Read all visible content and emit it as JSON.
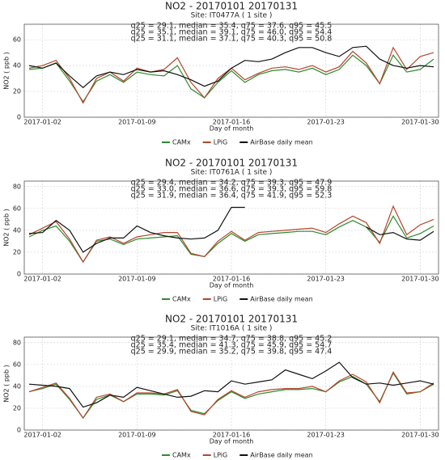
{
  "chart_data": [
    {
      "type": "line",
      "title": "NO2 - 20170101 20170131",
      "subtitle": "Site:  IT0477A ( 1 site )",
      "annotations": [
        {
          "text": "q25 = 29.1, median = 35.4, q75 = 37.6, q95 = 45.5",
          "color": "#2e8b2e"
        },
        {
          "text": "q25 = 35.1, median = 39.1, q75 = 46.0, q95 = 54.4",
          "color": "#111111"
        },
        {
          "text": "q25 = 31.1, median = 37.1, q75 = 40.3, q95 = 50.8",
          "color": "#a8321e"
        }
      ],
      "x_label": "Day of month",
      "y_label": "NO2 ( ppb )",
      "x": [
        "2017-01-01",
        "2017-01-02",
        "2017-01-03",
        "2017-01-04",
        "2017-01-05",
        "2017-01-06",
        "2017-01-07",
        "2017-01-08",
        "2017-01-09",
        "2017-01-10",
        "2017-01-11",
        "2017-01-12",
        "2017-01-13",
        "2017-01-14",
        "2017-01-15",
        "2017-01-16",
        "2017-01-17",
        "2017-01-18",
        "2017-01-19",
        "2017-01-20",
        "2017-01-21",
        "2017-01-22",
        "2017-01-23",
        "2017-01-24",
        "2017-01-25",
        "2017-01-26",
        "2017-01-27",
        "2017-01-28",
        "2017-01-29",
        "2017-01-30",
        "2017-01-31"
      ],
      "xlim": [
        "2017-01-01",
        "2017-01-31"
      ],
      "xticks": [
        "2017-01-02",
        "2017-01-09",
        "2017-01-16",
        "2017-01-23",
        "2017-01-30"
      ],
      "ylim": [
        0,
        72
      ],
      "yticks": [
        0,
        20,
        40,
        60
      ],
      "grid": true,
      "series": [
        {
          "name": "CAMx",
          "color": "#2e8b2e",
          "values": [
            37,
            38,
            42,
            28,
            12,
            28,
            33,
            27,
            35,
            33,
            32,
            40,
            22,
            15,
            27,
            36,
            27,
            33,
            36,
            37,
            35,
            38,
            33,
            37,
            48,
            40,
            26,
            48,
            35,
            37,
            45
          ]
        },
        {
          "name": "LPiG",
          "color": "#b4462d",
          "values": [
            38,
            40,
            44,
            30,
            11,
            30,
            35,
            28,
            38,
            35,
            37,
            46,
            27,
            15,
            30,
            38,
            29,
            34,
            38,
            39,
            37,
            40,
            35,
            39,
            51,
            42,
            26,
            54,
            37,
            47,
            50
          ]
        },
        {
          "name": "AirBase daily mean",
          "color": "#111111",
          "values": [
            40,
            38,
            42,
            32,
            23,
            32,
            35,
            33,
            37,
            35,
            36,
            33,
            29,
            24,
            28,
            38,
            44,
            43,
            45,
            50,
            54,
            54,
            50,
            47,
            54,
            55,
            45,
            40,
            38,
            40,
            39
          ]
        }
      ]
    },
    {
      "type": "line",
      "title": "NO2 - 20170101 20170131",
      "subtitle": "Site:  IT0761A ( 1 site )",
      "annotations": [
        {
          "text": "q25 = 29.4, median = 34.2, q75 = 39.3, q95 = 47.9",
          "color": "#2e8b2e"
        },
        {
          "text": "q25 = 33.0, median = 36.6, q75 = 39.3, q95 = 59.8",
          "color": "#111111"
        },
        {
          "text": "q25 = 31.9, median = 36.4, q75 = 41.9, q95 = 52.3",
          "color": "#a8321e"
        }
      ],
      "x_label": "Day of month",
      "y_label": "NO2 ( ppb )",
      "x": [
        "2017-01-01",
        "2017-01-02",
        "2017-01-03",
        "2017-01-04",
        "2017-01-05",
        "2017-01-06",
        "2017-01-07",
        "2017-01-08",
        "2017-01-09",
        "2017-01-10",
        "2017-01-11",
        "2017-01-12",
        "2017-01-13",
        "2017-01-14",
        "2017-01-15",
        "2017-01-16",
        "2017-01-17",
        "2017-01-18",
        "2017-01-19",
        "2017-01-20",
        "2017-01-21",
        "2017-01-22",
        "2017-01-23",
        "2017-01-24",
        "2017-01-25",
        "2017-01-26",
        "2017-01-27",
        "2017-01-28",
        "2017-01-29",
        "2017-01-30",
        "2017-01-31"
      ],
      "xlim": [
        "2017-01-01",
        "2017-01-31"
      ],
      "xticks": [
        "2017-01-02",
        "2017-01-09",
        "2017-01-16",
        "2017-01-23",
        "2017-01-30"
      ],
      "ylim": [
        0,
        85
      ],
      "yticks": [
        0,
        20,
        40,
        60,
        80
      ],
      "grid": true,
      "series": [
        {
          "name": "CAMx",
          "color": "#2e8b2e",
          "values": [
            34,
            40,
            44,
            30,
            11,
            30,
            32,
            27,
            32,
            33,
            34,
            35,
            18,
            16,
            28,
            37,
            30,
            36,
            37,
            38,
            39,
            39,
            36,
            43,
            49,
            43,
            29,
            53,
            33,
            37,
            44
          ]
        },
        {
          "name": "LPiG",
          "color": "#b4462d",
          "values": [
            36,
            42,
            48,
            32,
            11,
            31,
            34,
            28,
            34,
            36,
            38,
            38,
            19,
            16,
            30,
            39,
            31,
            38,
            39,
            40,
            41,
            42,
            38,
            46,
            53,
            47,
            28,
            62,
            36,
            45,
            50
          ]
        },
        {
          "name": "AirBase daily mean",
          "color": "#111111",
          "values": [
            37,
            38,
            49,
            40,
            20,
            28,
            33,
            33,
            44,
            38,
            35,
            33,
            32,
            33,
            40,
            61,
            61,
            null,
            null,
            null,
            null,
            null,
            null,
            null,
            null,
            43,
            36,
            38,
            32,
            31,
            39
          ]
        }
      ]
    },
    {
      "type": "line",
      "title": "NO2 - 20170101 20170131",
      "subtitle": "Site:  IT1016A ( 1 site )",
      "annotations": [
        {
          "text": "q25 = 29.1, median = 34.7, q75 = 38.8, q95 = 45.2",
          "color": "#2e8b2e"
        },
        {
          "text": "q25 = 35.4, median = 41.3, q75 = 45.9, q95 = 54.7",
          "color": "#111111"
        },
        {
          "text": "q25 = 29.9, median = 35.2, q75 = 39.8, q95 = 47.4",
          "color": "#a8321e"
        }
      ],
      "x_label": "Day of month",
      "y_label": "NO2 ( ppb )",
      "x": [
        "2017-01-01",
        "2017-01-02",
        "2017-01-03",
        "2017-01-04",
        "2017-01-05",
        "2017-01-06",
        "2017-01-07",
        "2017-01-08",
        "2017-01-09",
        "2017-01-10",
        "2017-01-11",
        "2017-01-12",
        "2017-01-13",
        "2017-01-14",
        "2017-01-15",
        "2017-01-16",
        "2017-01-17",
        "2017-01-18",
        "2017-01-19",
        "2017-01-20",
        "2017-01-21",
        "2017-01-22",
        "2017-01-23",
        "2017-01-24",
        "2017-01-25",
        "2017-01-26",
        "2017-01-27",
        "2017-01-28",
        "2017-01-29",
        "2017-01-30",
        "2017-01-31"
      ],
      "xlim": [
        "2017-01-01",
        "2017-01-31"
      ],
      "xticks": [
        "2017-01-02",
        "2017-01-09",
        "2017-01-16",
        "2017-01-23",
        "2017-01-30"
      ],
      "ylim": [
        0,
        85
      ],
      "yticks": [
        0,
        20,
        40,
        60,
        80
      ],
      "grid": true,
      "series": [
        {
          "name": "CAMx",
          "color": "#2e8b2e",
          "values": [
            35,
            38,
            42,
            28,
            11,
            28,
            32,
            26,
            33,
            33,
            32,
            36,
            18,
            15,
            27,
            35,
            29,
            33,
            35,
            37,
            37,
            38,
            35,
            44,
            49,
            42,
            26,
            52,
            33,
            35,
            42
          ]
        },
        {
          "name": "LPiG",
          "color": "#b4462d",
          "values": [
            35,
            39,
            43,
            29,
            11,
            30,
            33,
            26,
            34,
            34,
            33,
            37,
            17,
            14,
            28,
            36,
            30,
            35,
            37,
            38,
            38,
            40,
            35,
            45,
            51,
            44,
            25,
            53,
            34,
            35,
            43
          ]
        },
        {
          "name": "AirBase daily mean",
          "color": "#111111",
          "values": [
            42,
            41,
            40,
            38,
            21,
            25,
            32,
            30,
            39,
            36,
            33,
            30,
            31,
            36,
            35,
            45,
            42,
            44,
            46,
            55,
            51,
            47,
            54,
            62,
            48,
            42,
            43,
            41,
            43,
            45,
            42
          ]
        }
      ]
    }
  ]
}
